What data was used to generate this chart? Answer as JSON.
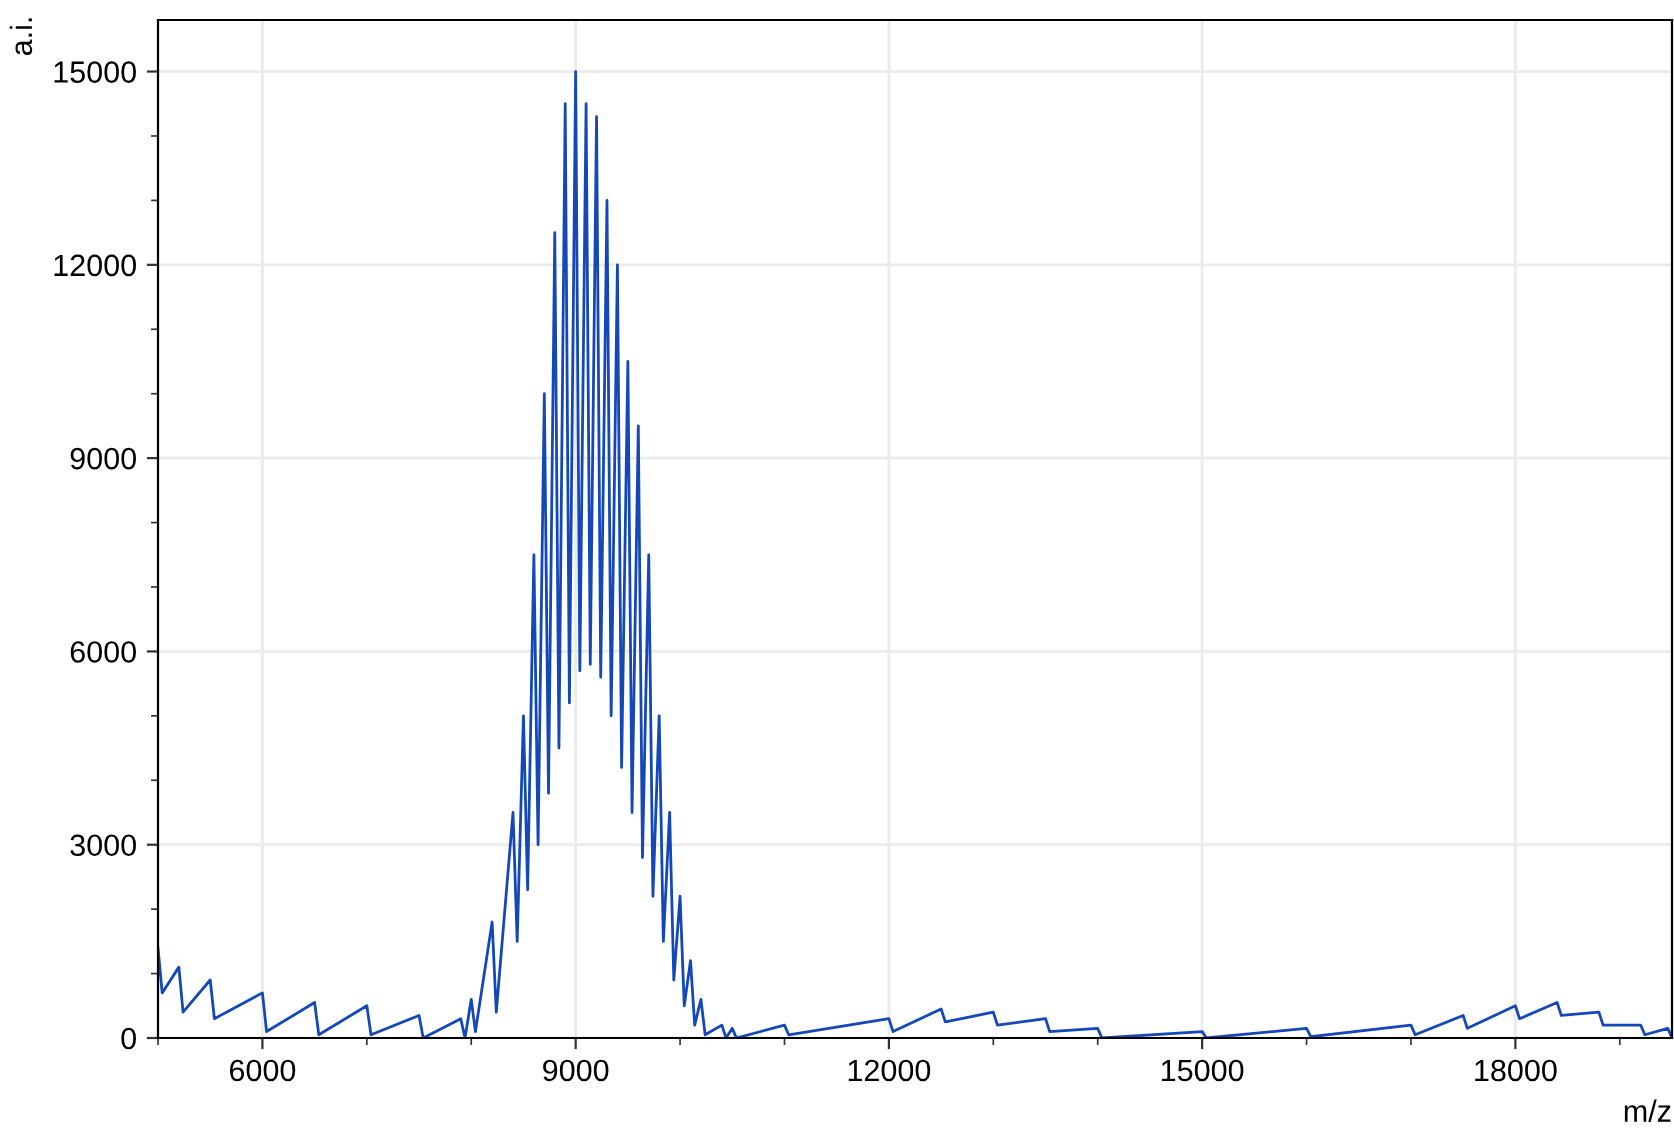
{
  "chart_data": {
    "type": "line",
    "xlabel": "m/z",
    "ylabel": "a.i.",
    "xlim": [
      5000,
      19500
    ],
    "ylim": [
      0,
      15800
    ],
    "xticks": [
      6000,
      9000,
      12000,
      15000,
      18000
    ],
    "yticks": [
      0,
      3000,
      6000,
      9000,
      12000,
      15000
    ],
    "grid": true,
    "line_style": "solid",
    "marker": "none",
    "series": [
      {
        "color": "#1448b8",
        "x": [
          5000,
          5040,
          5200,
          5240,
          5500,
          5540,
          6000,
          6040,
          6500,
          6540,
          7000,
          7040,
          7500,
          7540,
          7900,
          7940,
          8000,
          8040,
          8200,
          8240,
          8400,
          8440,
          8500,
          8540,
          8600,
          8640,
          8700,
          8740,
          8800,
          8840,
          8900,
          8940,
          9000,
          9040,
          9100,
          9140,
          9200,
          9240,
          9300,
          9340,
          9400,
          9440,
          9500,
          9540,
          9600,
          9640,
          9700,
          9740,
          9800,
          9840,
          9900,
          9940,
          10000,
          10040,
          10100,
          10140,
          10200,
          10240,
          10400,
          10440,
          10500,
          10540,
          11000,
          11040,
          12000,
          12040,
          12500,
          12540,
          13000,
          13040,
          13500,
          13540,
          14000,
          14040,
          15000,
          15040,
          16000,
          16040,
          17000,
          17040,
          17500,
          17540,
          18000,
          18040,
          18400,
          18440,
          18800,
          18840,
          19200,
          19240,
          19460,
          19500
        ],
        "values": [
          1400,
          700,
          1100,
          400,
          900,
          300,
          700,
          100,
          550,
          50,
          500,
          50,
          350,
          0,
          300,
          0,
          600,
          100,
          1800,
          400,
          3500,
          1500,
          5000,
          2300,
          7500,
          3000,
          10000,
          3800,
          12500,
          4500,
          14500,
          5200,
          15000,
          5700,
          14500,
          5800,
          14300,
          5600,
          13000,
          5000,
          12000,
          4200,
          10500,
          3500,
          9500,
          2800,
          7500,
          2200,
          5000,
          1500,
          3500,
          900,
          2200,
          500,
          1200,
          200,
          600,
          50,
          200,
          0,
          150,
          0,
          200,
          50,
          300,
          100,
          450,
          250,
          400,
          200,
          300,
          100,
          150,
          0,
          100,
          0,
          150,
          20,
          200,
          50,
          350,
          150,
          500,
          300,
          550,
          350,
          400,
          200,
          200,
          50,
          150,
          0
        ]
      }
    ]
  }
}
